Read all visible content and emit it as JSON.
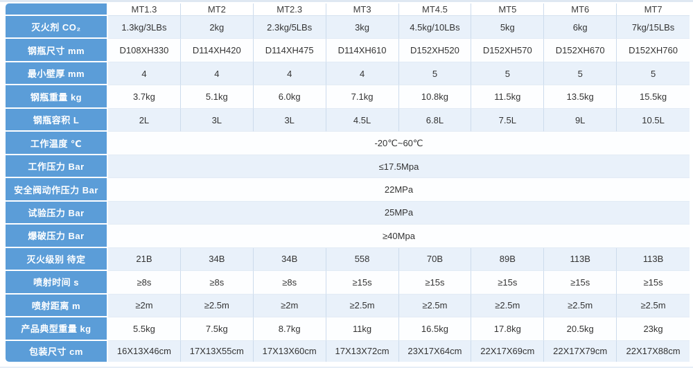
{
  "colors": {
    "label_column_bg": "#5b9dd8",
    "label_text": "#ffffff",
    "row_alt_bg": "#e9f1fa",
    "row_bg": "#fdfeff",
    "data_text": "#333333",
    "grid_vertical": "#ccdbec",
    "grid_horizontal": "#e2ebf5",
    "page_edge": "#dfe8f2"
  },
  "table": {
    "corner_label": "",
    "columns": [
      "MT1.3",
      "MT2",
      "MT2.3",
      "MT3",
      "MT4.5",
      "MT5",
      "MT6",
      "MT7"
    ],
    "rows": [
      {
        "label": "灭火剂 CO₂",
        "values": [
          "1.3kg/3LBs",
          "2kg",
          "2.3kg/5LBs",
          "3kg",
          "4.5kg/10LBs",
          "5kg",
          "6kg",
          "7kg/15LBs"
        ]
      },
      {
        "label": "钢瓶尺寸 mm",
        "values": [
          "D108XH330",
          "D114XH420",
          "D114XH475",
          "D114XH610",
          "D152XH520",
          "D152XH570",
          "D152XH670",
          "D152XH760"
        ]
      },
      {
        "label": "最小壁厚 mm",
        "values": [
          "4",
          "4",
          "4",
          "4",
          "5",
          "5",
          "5",
          "5"
        ]
      },
      {
        "label": "钢瓶重量 kg",
        "values": [
          "3.7kg",
          "5.1kg",
          "6.0kg",
          "7.1kg",
          "10.8kg",
          "11.5kg",
          "13.5kg",
          "15.5kg"
        ]
      },
      {
        "label": "钢瓶容积 L",
        "values": [
          "2L",
          "3L",
          "3L",
          "4.5L",
          "6.8L",
          "7.5L",
          "9L",
          "10.5L"
        ]
      },
      {
        "label": "工作温度 ℃",
        "merged": "-20℃~60℃"
      },
      {
        "label": "工作压力 Bar",
        "merged": "≤17.5Mpa"
      },
      {
        "label": "安全阀动作压力 Bar",
        "merged": "22MPa"
      },
      {
        "label": "试验压力 Bar",
        "merged": "25MPa"
      },
      {
        "label": "爆破压力 Bar",
        "merged": "≥40Mpa"
      },
      {
        "label": "灭火级别 待定",
        "values": [
          "21B",
          "34B",
          "34B",
          "558",
          "70B",
          "89B",
          "113B",
          "113B"
        ]
      },
      {
        "label": "喷射时间 s",
        "values": [
          "≥8s",
          "≥8s",
          "≥8s",
          "≥15s",
          "≥15s",
          "≥15s",
          "≥15s",
          "≥15s"
        ]
      },
      {
        "label": "喷射距离 m",
        "values": [
          "≥2m",
          "≥2.5m",
          "≥2m",
          "≥2.5m",
          "≥2.5m",
          "≥2.5m",
          "≥2.5m",
          "≥2.5m"
        ]
      },
      {
        "label": "产品典型重量 kg",
        "values": [
          "5.5kg",
          "7.5kg",
          "8.7kg",
          "11kg",
          "16.5kg",
          "17.8kg",
          "20.5kg",
          "23kg"
        ]
      },
      {
        "label": "包装尺寸 cm",
        "values": [
          "16X13X46cm",
          "17X13X55cm",
          "17X13X60cm",
          "17X13X72cm",
          "23X17X64cm",
          "22X17X69cm",
          "22X17X79cm",
          "22X17X88cm"
        ]
      }
    ]
  }
}
